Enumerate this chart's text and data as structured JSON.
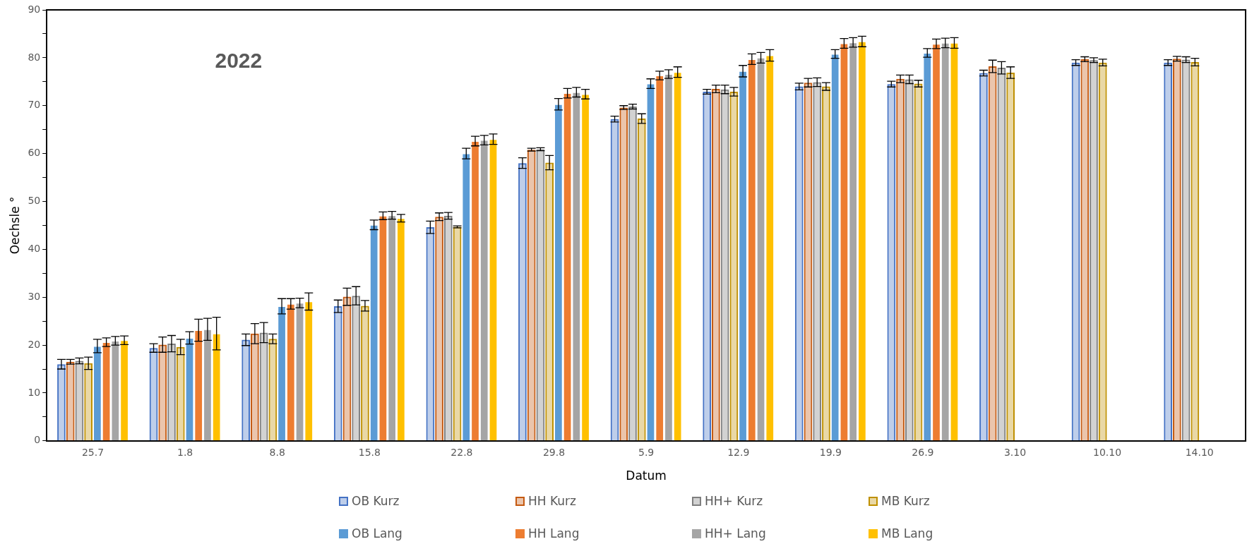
{
  "chart_data": {
    "type": "bar",
    "xlabel": "Datum",
    "ylabel": "Oechsle °",
    "annotations": [
      "2022"
    ],
    "categories": [
      "25.7",
      "1.8",
      "8.8",
      "15.8",
      "22.8",
      "29.8",
      "5.9",
      "12.9",
      "19.9",
      "26.9",
      "3.10",
      "10.10",
      "14.10"
    ],
    "ylim": [
      0,
      90
    ],
    "yticks": [
      0,
      {
        "value": 5,
        "label": null
      },
      10,
      {
        "value": 15,
        "label": null
      },
      20,
      {
        "value": 25,
        "label": null
      },
      30,
      {
        "value": 35,
        "label": null
      },
      40,
      {
        "value": 45,
        "label": null
      },
      50,
      {
        "value": 55,
        "label": null
      },
      60,
      {
        "value": 65,
        "label": null
      },
      70,
      {
        "value": 75,
        "label": null
      },
      80,
      {
        "value": 85,
        "label": null
      },
      90
    ],
    "grid": false,
    "legend": "bottom",
    "series": [
      {
        "name": "OB Kurz",
        "color": "#4472c4",
        "values": [
          16,
          19.4,
          21.1,
          28.1,
          44.6,
          58,
          67.2,
          72.9,
          74,
          74.5,
          76.8,
          79,
          79
        ],
        "errors": [
          1,
          0.9,
          1.2,
          1.3,
          1.3,
          1.1,
          0.6,
          0.5,
          0.7,
          0.6,
          0.6,
          0.6,
          0.6
        ]
      },
      {
        "name": "HH Kurz",
        "color": "#c55a11",
        "values": [
          16.5,
          20.1,
          22.4,
          30.1,
          46.8,
          60.8,
          69.6,
          73.5,
          74.8,
          75.6,
          78.2,
          79.7,
          79.8
        ],
        "errors": [
          0.5,
          1.6,
          2.1,
          1.8,
          0.8,
          0.3,
          0.4,
          0.8,
          0.9,
          0.8,
          1.3,
          0.5,
          0.5
        ]
      },
      {
        "name": "HH+ Kurz",
        "color": "#7f7f7f",
        "values": [
          16.7,
          20.3,
          22.6,
          30.3,
          47,
          60.9,
          69.8,
          73.4,
          74.9,
          75.5,
          77.9,
          79.5,
          79.6
        ],
        "errors": [
          0.6,
          1.7,
          2.1,
          1.9,
          0.7,
          0.3,
          0.5,
          0.9,
          0.9,
          0.9,
          1.3,
          0.5,
          0.6
        ]
      },
      {
        "name": "MB Kurz",
        "color": "#bf9000",
        "values": [
          16.2,
          19.6,
          21.3,
          28.2,
          44.7,
          58.1,
          67.3,
          72.9,
          74,
          74.6,
          76.9,
          79,
          79.1
        ],
        "errors": [
          1.3,
          1.6,
          1,
          1.1,
          0.2,
          1.5,
          1,
          0.9,
          0.8,
          0.7,
          1.2,
          0.7,
          0.8
        ]
      },
      {
        "name": "OB Lang",
        "color": "#5b9bd5",
        "values": [
          19.8,
          21.5,
          28.1,
          45.1,
          60,
          70.3,
          74.6,
          77.2,
          80.8,
          81,
          null,
          null,
          null
        ],
        "errors": [
          1.4,
          1.3,
          1.6,
          1,
          1.1,
          1.2,
          1,
          1.2,
          0.9,
          0.9,
          null,
          null,
          null
        ]
      },
      {
        "name": "HH Lang",
        "color": "#ed7d31",
        "values": [
          20.6,
          23.1,
          28.6,
          47,
          62.6,
          72.6,
          76.3,
          79.7,
          83,
          82.9,
          null,
          null,
          null
        ],
        "errors": [
          0.9,
          2.3,
          1.1,
          0.8,
          1,
          1,
          0.9,
          1.1,
          1,
          1,
          null,
          null,
          null
        ]
      },
      {
        "name": "HH+ Lang",
        "color": "#a5a5a5",
        "values": [
          20.9,
          23.3,
          28.8,
          47.1,
          62.8,
          72.8,
          76.6,
          80,
          83.2,
          83.1,
          null,
          null,
          null
        ],
        "errors": [
          0.9,
          2.3,
          1,
          0.8,
          1,
          1,
          0.9,
          1.1,
          1,
          1,
          null,
          null,
          null
        ]
      },
      {
        "name": "MB Lang",
        "color": "#ffc000",
        "values": [
          21,
          22.4,
          29.1,
          46.5,
          63,
          72.4,
          77,
          80.5,
          83.4,
          83.1,
          null,
          null,
          null
        ],
        "errors": [
          0.9,
          3.4,
          1.8,
          0.8,
          1.1,
          1,
          1.1,
          1.2,
          1.1,
          1.1,
          null,
          null,
          null
        ]
      }
    ]
  }
}
